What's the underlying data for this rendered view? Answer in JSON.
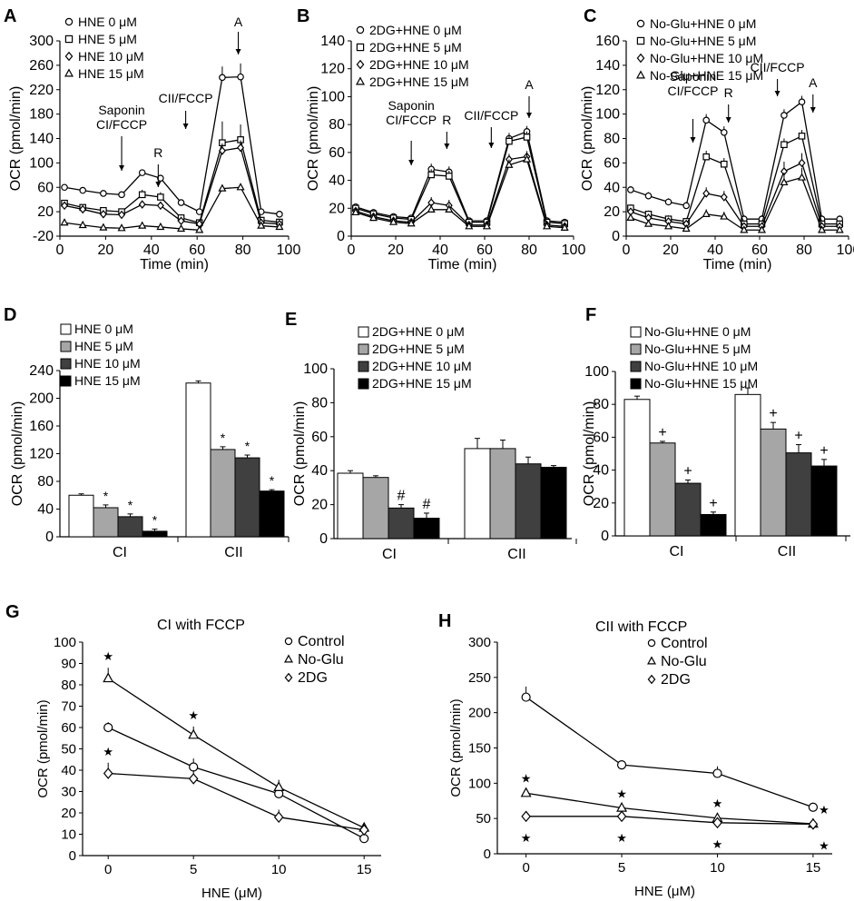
{
  "colors": {
    "axis": "#000000",
    "bar_shades": [
      "#ffffff",
      "#a6a6a6",
      "#404040",
      "#000000"
    ],
    "marker_fill": "#ffffff"
  },
  "chart_data": [
    {
      "id": "A",
      "panel_letter": "A",
      "type": "line",
      "xlabel": "Time (min)",
      "ylabel": "OCR (pmol/min)",
      "xlim": [
        0,
        100
      ],
      "ylim": [
        -20,
        300
      ],
      "xticks": [
        0,
        20,
        40,
        60,
        80,
        100
      ],
      "yticks": [
        -20,
        20,
        60,
        100,
        140,
        180,
        220,
        260,
        300
      ],
      "legend_position": "top-left",
      "x": [
        2,
        10,
        19,
        27,
        36,
        44,
        53,
        61,
        71,
        79,
        88,
        96
      ],
      "series": [
        {
          "name": "HNE 0 μM",
          "marker": "circle",
          "values": [
            60,
            55,
            50,
            48,
            84,
            75,
            35,
            20,
            240,
            241,
            20,
            16
          ],
          "errors": [
            3,
            3,
            3,
            3,
            5,
            5,
            3,
            3,
            18,
            22,
            3,
            3
          ]
        },
        {
          "name": "HNE 5 μM",
          "marker": "square",
          "values": [
            34,
            27,
            22,
            20,
            48,
            44,
            10,
            2,
            133,
            138,
            6,
            3
          ],
          "errors": [
            4,
            4,
            3,
            3,
            8,
            8,
            3,
            3,
            35,
            25,
            3,
            3
          ]
        },
        {
          "name": "HNE 10 μM",
          "marker": "diamond",
          "values": [
            30,
            24,
            16,
            15,
            32,
            30,
            5,
            0,
            120,
            125,
            2,
            0
          ],
          "errors": [
            4,
            4,
            3,
            3,
            6,
            6,
            3,
            3,
            12,
            12,
            3,
            3
          ]
        },
        {
          "name": "HNE 15 μM",
          "marker": "triangle",
          "values": [
            2,
            -2,
            -6,
            -7,
            -3,
            -5,
            -8,
            -10,
            58,
            60,
            -3,
            -5
          ],
          "errors": [
            2,
            2,
            2,
            2,
            3,
            3,
            2,
            2,
            5,
            5,
            2,
            2
          ]
        }
      ],
      "annotations": [
        {
          "label": "Saponin",
          "label2": "CI/FCCP",
          "x": 27
        },
        {
          "label": "R",
          "x": 43
        },
        {
          "label": "CII/FCCP",
          "x": 55
        },
        {
          "label": "A",
          "x": 78
        }
      ]
    },
    {
      "id": "B",
      "panel_letter": "B",
      "type": "line",
      "xlabel": "Time (min)",
      "ylabel": "OCR (pmol/min)",
      "xlim": [
        0,
        100
      ],
      "ylim": [
        0,
        140
      ],
      "xticks": [
        0,
        20,
        40,
        60,
        80,
        100
      ],
      "yticks": [
        0,
        20,
        40,
        60,
        80,
        100,
        120,
        140
      ],
      "legend_position": "top-left",
      "x": [
        2,
        10,
        19,
        27,
        36,
        44,
        53,
        61,
        71,
        79,
        88,
        96
      ],
      "series": [
        {
          "name": "2DG+HNE 0 μM",
          "marker": "circle",
          "values": [
            21,
            17,
            14,
            13,
            48,
            46,
            11,
            11,
            70,
            75,
            11,
            10
          ],
          "errors": [
            2,
            2,
            2,
            2,
            4,
            4,
            2,
            2,
            4,
            4,
            2,
            2
          ]
        },
        {
          "name": "2DG+HNE 5 μM",
          "marker": "square",
          "values": [
            20,
            16,
            13,
            12,
            44,
            43,
            10,
            10,
            68,
            71,
            10,
            9
          ],
          "errors": [
            2,
            2,
            2,
            2,
            4,
            4,
            2,
            2,
            4,
            4,
            2,
            2
          ]
        },
        {
          "name": "2DG+HNE 10 μM",
          "marker": "diamond",
          "values": [
            18,
            14,
            11,
            10,
            24,
            22,
            8,
            8,
            55,
            57,
            8,
            7
          ],
          "errors": [
            2,
            2,
            2,
            2,
            4,
            4,
            2,
            2,
            4,
            4,
            2,
            2
          ]
        },
        {
          "name": "2DG+HNE 15 μM",
          "marker": "triangle",
          "values": [
            17,
            13,
            10,
            9,
            19,
            19,
            7,
            7,
            51,
            55,
            7,
            6
          ],
          "errors": [
            2,
            2,
            2,
            2,
            4,
            4,
            2,
            2,
            4,
            4,
            2,
            2
          ]
        }
      ],
      "annotations": [
        {
          "label": "Saponin",
          "label2": "CI/FCCP",
          "x": 27
        },
        {
          "label": "R",
          "x": 43
        },
        {
          "label": "CII/FCCP",
          "x": 63
        },
        {
          "label": "A",
          "x": 80
        }
      ]
    },
    {
      "id": "C",
      "panel_letter": "C",
      "type": "line",
      "xlabel": "Time (min)",
      "ylabel": "OCR (pmol/min)",
      "xlim": [
        0,
        100
      ],
      "ylim": [
        0,
        160
      ],
      "xticks": [
        0,
        20,
        40,
        60,
        80,
        100
      ],
      "yticks": [
        0,
        20,
        40,
        60,
        80,
        100,
        120,
        140,
        160
      ],
      "legend_position": "top-left",
      "x": [
        2,
        10,
        19,
        27,
        36,
        44,
        53,
        61,
        71,
        79,
        88,
        96
      ],
      "series": [
        {
          "name": "No-Glu+HNE 0 μM",
          "marker": "circle",
          "values": [
            38,
            33,
            28,
            25,
            95,
            85,
            14,
            14,
            99,
            110,
            14,
            14
          ],
          "errors": [
            3,
            3,
            3,
            3,
            5,
            5,
            3,
            3,
            5,
            5,
            3,
            3
          ]
        },
        {
          "name": "No-Glu+HNE 5 μM",
          "marker": "square",
          "values": [
            23,
            18,
            14,
            12,
            65,
            59,
            10,
            10,
            75,
            82,
            10,
            10
          ],
          "errors": [
            3,
            3,
            3,
            3,
            5,
            5,
            3,
            3,
            5,
            5,
            3,
            3
          ]
        },
        {
          "name": "No-Glu+HNE 10 μM",
          "marker": "diamond",
          "values": [
            20,
            15,
            12,
            10,
            35,
            32,
            8,
            8,
            53,
            60,
            8,
            8
          ],
          "errors": [
            3,
            3,
            3,
            3,
            5,
            5,
            3,
            3,
            8,
            8,
            3,
            3
          ]
        },
        {
          "name": "No-Glu+HNE 15 μM",
          "marker": "triangle",
          "values": [
            15,
            10,
            8,
            6,
            18,
            16,
            5,
            5,
            44,
            48,
            5,
            5
          ],
          "errors": [
            3,
            3,
            3,
            3,
            4,
            4,
            3,
            3,
            8,
            8,
            3,
            3
          ]
        }
      ],
      "annotations": [
        {
          "label": "Saponin",
          "label2": "CI/FCCP",
          "x": 30
        },
        {
          "label": "R",
          "x": 46
        },
        {
          "label": "CII/FCCP",
          "x": 68
        },
        {
          "label": "A",
          "x": 84
        }
      ]
    },
    {
      "id": "D",
      "panel_letter": "D",
      "type": "bar",
      "xlabel": "",
      "ylabel": "OCR (pmol/min)",
      "ylim": [
        0,
        240
      ],
      "yticks": [
        0,
        40,
        80,
        120,
        160,
        200,
        240
      ],
      "categories": [
        "CI",
        "CII"
      ],
      "legend_position": "top-left",
      "series": [
        {
          "name": "HNE 0 μM",
          "values": [
            60,
            222
          ],
          "errors": [
            2,
            3
          ],
          "marks": [
            "",
            ""
          ]
        },
        {
          "name": "HNE 5 μM",
          "values": [
            42,
            126
          ],
          "errors": [
            4,
            4
          ],
          "marks": [
            "*",
            "*"
          ]
        },
        {
          "name": "HNE 10 μM",
          "values": [
            29,
            114
          ],
          "errors": [
            4,
            4
          ],
          "marks": [
            "*",
            "*"
          ]
        },
        {
          "name": "HNE 15 μM",
          "values": [
            8,
            66
          ],
          "errors": [
            3,
            2
          ],
          "marks": [
            "*",
            "*"
          ]
        }
      ]
    },
    {
      "id": "E",
      "panel_letter": "E",
      "type": "bar",
      "xlabel": "",
      "ylabel": "OCR (pmol/min)",
      "ylim": [
        0,
        100
      ],
      "yticks": [
        0,
        20,
        40,
        60,
        80,
        100
      ],
      "categories": [
        "CI",
        "CII"
      ],
      "legend_position": "top-left",
      "series": [
        {
          "name": "2DG+HNE 0 μM",
          "values": [
            38.5,
            53
          ],
          "errors": [
            1.5,
            6
          ],
          "marks": [
            "",
            ""
          ]
        },
        {
          "name": "2DG+HNE 5 μM",
          "values": [
            36,
            53
          ],
          "errors": [
            1,
            5
          ],
          "marks": [
            "",
            ""
          ]
        },
        {
          "name": "2DG+HNE 10 μM",
          "values": [
            18,
            44
          ],
          "errors": [
            2,
            4
          ],
          "marks": [
            "#",
            ""
          ]
        },
        {
          "name": "2DG+HNE 15 μM",
          "values": [
            12,
            42
          ],
          "errors": [
            3,
            1
          ],
          "marks": [
            "#",
            ""
          ]
        }
      ]
    },
    {
      "id": "F",
      "panel_letter": "F",
      "type": "bar",
      "xlabel": "",
      "ylabel": "OCR (pmol/min)",
      "ylim": [
        0,
        100
      ],
      "yticks": [
        0,
        20,
        40,
        60,
        80,
        100
      ],
      "categories": [
        "CI",
        "CII"
      ],
      "legend_position": "top-left",
      "series": [
        {
          "name": "No-Glu+HNE 0 μM",
          "values": [
            83,
            86
          ],
          "errors": [
            2,
            4
          ],
          "marks": [
            "",
            ""
          ]
        },
        {
          "name": "No-Glu+HNE 5 μM",
          "values": [
            56.5,
            65
          ],
          "errors": [
            1,
            4
          ],
          "marks": [
            "+",
            "+"
          ]
        },
        {
          "name": "No-Glu+HNE 10 μM",
          "values": [
            32,
            50.5
          ],
          "errors": [
            2,
            5
          ],
          "marks": [
            "+",
            "+"
          ]
        },
        {
          "name": "No-Glu+HNE 15 μM",
          "values": [
            13,
            42.5
          ],
          "errors": [
            1.5,
            4
          ],
          "marks": [
            "+",
            "+"
          ]
        }
      ]
    },
    {
      "id": "G",
      "panel_letter": "G",
      "type": "line",
      "title": "CI with FCCP",
      "xlabel": "HNE (μM)",
      "ylabel": "OCR (pmol/min)",
      "xlim": [
        -1.5,
        16
      ],
      "ylim": [
        0,
        100
      ],
      "xticks": [
        0,
        5,
        10,
        15
      ],
      "yticks": [
        0,
        10,
        20,
        30,
        40,
        50,
        60,
        70,
        80,
        90,
        100
      ],
      "legend_position": "top-right",
      "x": [
        0,
        5,
        10,
        15
      ],
      "series": [
        {
          "name": "Control",
          "marker": "circle",
          "values": [
            60,
            41.5,
            29,
            8
          ],
          "errors": [
            2.5,
            4,
            4,
            1.5
          ],
          "marks": [
            "",
            "",
            "",
            ""
          ]
        },
        {
          "name": "No-Glu",
          "marker": "triangle",
          "values": [
            83,
            56.5,
            32,
            13
          ],
          "errors": [
            5,
            4,
            3.5,
            1.5
          ],
          "marks": [
            "★",
            "★",
            "",
            ""
          ]
        },
        {
          "name": "2DG",
          "marker": "diamond",
          "values": [
            38.5,
            36,
            18,
            12
          ],
          "errors": [
            5,
            4,
            3.5,
            2
          ],
          "marks": [
            "★",
            "",
            "",
            ""
          ]
        }
      ]
    },
    {
      "id": "H",
      "panel_letter": "H",
      "type": "line",
      "title": "CII with FCCP",
      "xlabel": "HNE (μM)",
      "ylabel": "OCR (pmol/min)",
      "xlim": [
        -1.5,
        16
      ],
      "ylim": [
        0,
        300
      ],
      "xticks": [
        0,
        5,
        10,
        15
      ],
      "yticks": [
        0,
        50,
        100,
        150,
        200,
        250,
        300
      ],
      "legend_position": "top-right",
      "x": [
        0,
        5,
        10,
        15
      ],
      "series": [
        {
          "name": "Control",
          "marker": "circle",
          "values": [
            222,
            126,
            114,
            66
          ],
          "errors": [
            15,
            3,
            10,
            3
          ],
          "marks": [
            "",
            "",
            "",
            ""
          ]
        },
        {
          "name": "No-Glu",
          "marker": "triangle",
          "values": [
            86,
            65,
            50.5,
            42.5
          ],
          "errors": [
            5,
            4,
            5,
            4
          ],
          "marks": [
            "★",
            "★",
            "★",
            "★"
          ]
        },
        {
          "name": "2DG",
          "marker": "diamond",
          "values": [
            53,
            53,
            44,
            42
          ],
          "errors": [
            6,
            5,
            4,
            1
          ],
          "marks": [
            "★",
            "★",
            "★",
            "★"
          ]
        }
      ]
    }
  ]
}
